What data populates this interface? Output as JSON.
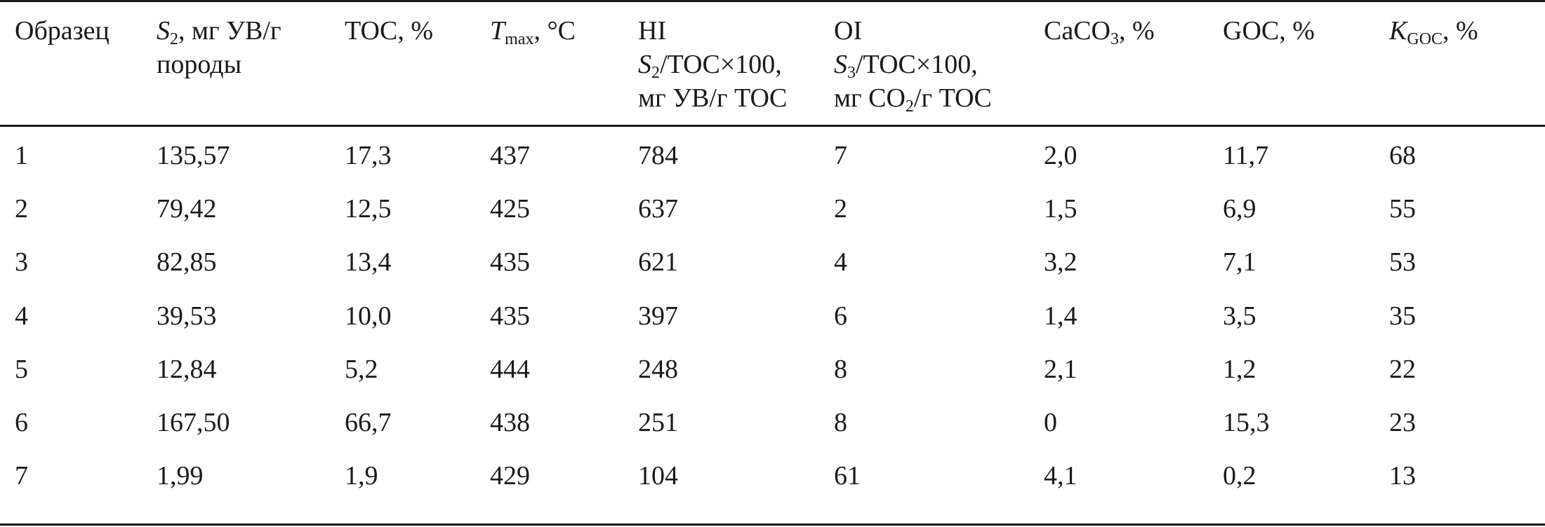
{
  "table": {
    "headers": {
      "sample": "Образец",
      "s2": {
        "sym": "S",
        "sub": "2",
        "rest": ", мг УВ/г",
        "line2": "породы"
      },
      "toc": "TOC, %",
      "tmax": {
        "sym": "T",
        "sub": "max",
        "rest": ", °C"
      },
      "hi": {
        "line1": "HI",
        "sym": "S",
        "sub": "2",
        "rest": "/TOC×100,",
        "line3": "мг УВ/г TOC"
      },
      "oi": {
        "line1": "OI",
        "sym": "S",
        "sub": "3",
        "rest": "/TOC×100,",
        "line3_pre": "мг CO",
        "line3_sub": "2",
        "line3_post": "/г TOC"
      },
      "caco3": {
        "pre": "CaCO",
        "sub": "3",
        "post": ", %"
      },
      "goc": "GOC, %",
      "kgoc": {
        "sym": "K",
        "sub": "GOC",
        "rest": ", %"
      }
    },
    "rows": [
      [
        "1",
        "135,57",
        "17,3",
        "437",
        "784",
        "7",
        "2,0",
        "11,7",
        "68"
      ],
      [
        "2",
        "79,42",
        "12,5",
        "425",
        "637",
        "2",
        "1,5",
        "6,9",
        "55"
      ],
      [
        "3",
        "82,85",
        "13,4",
        "435",
        "621",
        "4",
        "3,2",
        "7,1",
        "53"
      ],
      [
        "4",
        "39,53",
        "10,0",
        "435",
        "397",
        "6",
        "1,4",
        "3,5",
        "35"
      ],
      [
        "5",
        "12,84",
        "5,2",
        "444",
        "248",
        "8",
        "2,1",
        "1,2",
        "22"
      ],
      [
        "6",
        "167,50",
        "66,7",
        "438",
        "251",
        "8",
        "0",
        "15,3",
        "23"
      ],
      [
        "7",
        "1,99",
        "1,9",
        "429",
        "104",
        "61",
        "4,1",
        "0,2",
        "13"
      ]
    ]
  }
}
